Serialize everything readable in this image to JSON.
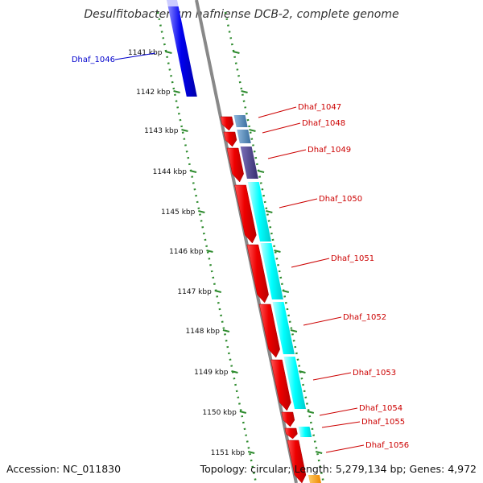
{
  "title": "Desulfitobacterium hafniense DCB-2, complete genome",
  "ticks": [
    "1141 kbp",
    "1142 kbp",
    "1143 kbp",
    "1144 kbp",
    "1145 kbp",
    "1146 kbp",
    "1147 kbp",
    "1148 kbp",
    "1149 kbp",
    "1150 kbp",
    "1151 kbp"
  ],
  "genes": [
    {
      "label": "Dhaf_1046",
      "color": "#0000cc"
    },
    {
      "label": "Dhaf_1047",
      "color": "#cc0000"
    },
    {
      "label": "Dhaf_1048",
      "color": "#cc0000"
    },
    {
      "label": "Dhaf_1049",
      "color": "#cc0000"
    },
    {
      "label": "Dhaf_1050",
      "color": "#cc0000"
    },
    {
      "label": "Dhaf_1051",
      "color": "#cc0000"
    },
    {
      "label": "Dhaf_1052",
      "color": "#cc0000"
    },
    {
      "label": "Dhaf_1053",
      "color": "#cc0000"
    },
    {
      "label": "Dhaf_1054",
      "color": "#cc0000"
    },
    {
      "label": "Dhaf_1055",
      "color": "#cc0000"
    },
    {
      "label": "Dhaf_1056",
      "color": "#cc0000"
    }
  ],
  "colors": {
    "forward_strand": "#ff0000",
    "reverse_strand": "#0000ff",
    "backbone": "#888888",
    "tick": "#2e8b2e",
    "cog_cyan": "#00ffff",
    "cog_steelblue": "#4682b4",
    "cog_purple": "#483d8b",
    "cog_orange": "#ff9900"
  },
  "footer": {
    "accession": "Accession: NC_011830",
    "summary": "Topology: circular; Length: 5,279,134 bp; Genes: 4,972"
  }
}
